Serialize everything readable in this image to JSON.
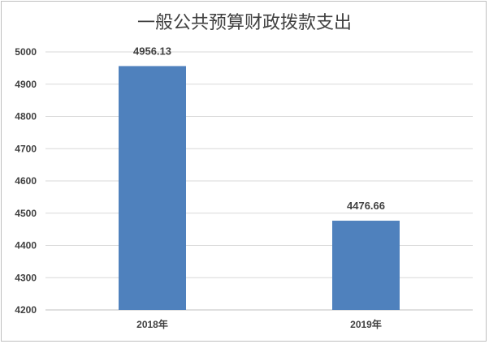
{
  "chart_data": {
    "type": "bar",
    "title": "一般公共预算财政拨款支出",
    "categories": [
      "2018年",
      "2019年"
    ],
    "values": [
      4956.13,
      4476.66
    ],
    "value_labels": [
      "4956.13",
      "4476.66"
    ],
    "ylim": [
      4200,
      5000
    ],
    "yticks": [
      4200,
      4300,
      4400,
      4500,
      4600,
      4700,
      4800,
      4900,
      5000
    ],
    "grid": true,
    "bar_color": "#4f81bd",
    "xlabel": "",
    "ylabel": ""
  }
}
